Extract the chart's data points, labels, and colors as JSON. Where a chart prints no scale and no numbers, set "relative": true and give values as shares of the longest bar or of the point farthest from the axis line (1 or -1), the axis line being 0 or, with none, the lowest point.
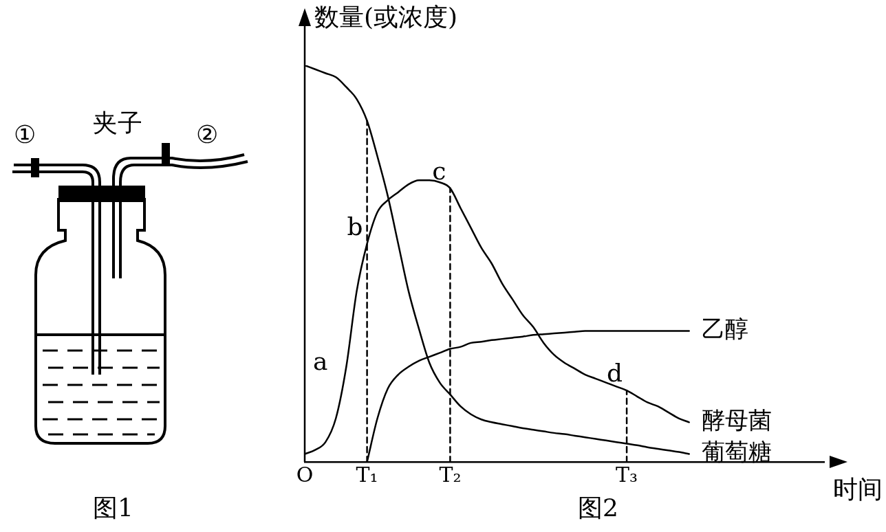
{
  "chart_data": {
    "type": "line",
    "relative": true,
    "ylabel": "数量(或浓度)",
    "xlabel": "时间",
    "categories": [
      "O",
      null,
      null,
      null,
      null,
      null,
      "T₁",
      null,
      null,
      null,
      null,
      null,
      null,
      null,
      "T₂",
      null,
      null,
      null,
      null,
      null,
      null,
      null,
      null,
      null,
      null,
      null,
      null,
      null,
      null,
      null,
      null,
      "T₃",
      null,
      null,
      null,
      null,
      null,
      null,
      null,
      null,
      null,
      null,
      null,
      null,
      null,
      null,
      null,
      null,
      null,
      null,
      null
    ],
    "tick_labels": "x",
    "grid": false,
    "legend": false,
    "marker": "none",
    "line_style": "solid",
    "series": [
      {
        "name": "葡萄糖",
        "color": "#000000",
        "values": [
          1.0,
          0.99,
          0.98,
          0.97,
          0.945,
          0.915,
          0.86,
          0.77,
          0.67,
          0.55,
          0.43,
          0.335,
          0.25,
          0.2,
          0.17,
          0.14,
          0.12,
          0.107,
          0.1,
          0.095,
          0.09,
          0.085,
          0.081,
          0.077,
          0.073,
          0.07,
          0.066,
          0.062,
          0.058,
          0.054,
          0.05,
          0.046,
          0.042,
          0.037,
          0.033,
          0.029,
          0.025,
          0.02,
          null,
          null,
          null,
          null,
          null,
          null,
          null,
          null,
          null,
          null,
          null,
          null,
          null
        ]
      },
      {
        "name": "酵母菌",
        "color": "#000000",
        "values": [
          0.02,
          0.03,
          0.05,
          0.11,
          0.24,
          0.43,
          0.55,
          0.63,
          0.66,
          0.68,
          0.7,
          0.71,
          0.71,
          0.705,
          0.69,
          0.64,
          0.59,
          0.54,
          0.5,
          0.45,
          0.41,
          0.37,
          0.34,
          0.3,
          0.27,
          0.25,
          0.235,
          0.22,
          0.21,
          0.2,
          0.19,
          0.18,
          0.165,
          0.15,
          0.14,
          0.125,
          0.11,
          0.1,
          null,
          null,
          null,
          null,
          null,
          null,
          null,
          null,
          null,
          null,
          null,
          null,
          null
        ]
      },
      {
        "name": "乙醇",
        "color": "#000000",
        "values": [
          null,
          null,
          null,
          null,
          null,
          null,
          0,
          0.11,
          0.185,
          0.22,
          0.24,
          0.255,
          0.265,
          0.275,
          0.285,
          0.29,
          0.3,
          0.303,
          0.307,
          0.31,
          0.313,
          0.316,
          0.32,
          0.322,
          0.324,
          0.326,
          0.328,
          0.33,
          0.33,
          0.33,
          0.33,
          0.33,
          0.33,
          0.33,
          0.33,
          0.33,
          0.33,
          0.33,
          null,
          null,
          null,
          null,
          null,
          null,
          null,
          null,
          null,
          null,
          null,
          null,
          null
        ]
      },
      {
        "color": "#000000",
        "line_style": "dashed",
        "x": [
          "T₁",
          "T₁"
        ],
        "values": [
          0,
          0.86
        ]
      },
      {
        "color": "#000000",
        "line_style": "dashed",
        "x": [
          "T₂",
          "T₂"
        ],
        "values": [
          0,
          0.69
        ]
      },
      {
        "color": "#000000",
        "line_style": "dashed",
        "x": [
          "T₃",
          "T₃"
        ],
        "values": [
          0,
          0.18
        ]
      }
    ],
    "annotations": [
      "①",
      "夹子",
      "②",
      "图1",
      "图2",
      "a",
      {
        "text": "b",
        "x": "T₁",
        "y": 0.55
      },
      {
        "text": "c",
        "x": "T₂",
        "y": 0.69
      },
      {
        "text": "d",
        "x": "T₃",
        "y": 0.18
      }
    ]
  }
}
